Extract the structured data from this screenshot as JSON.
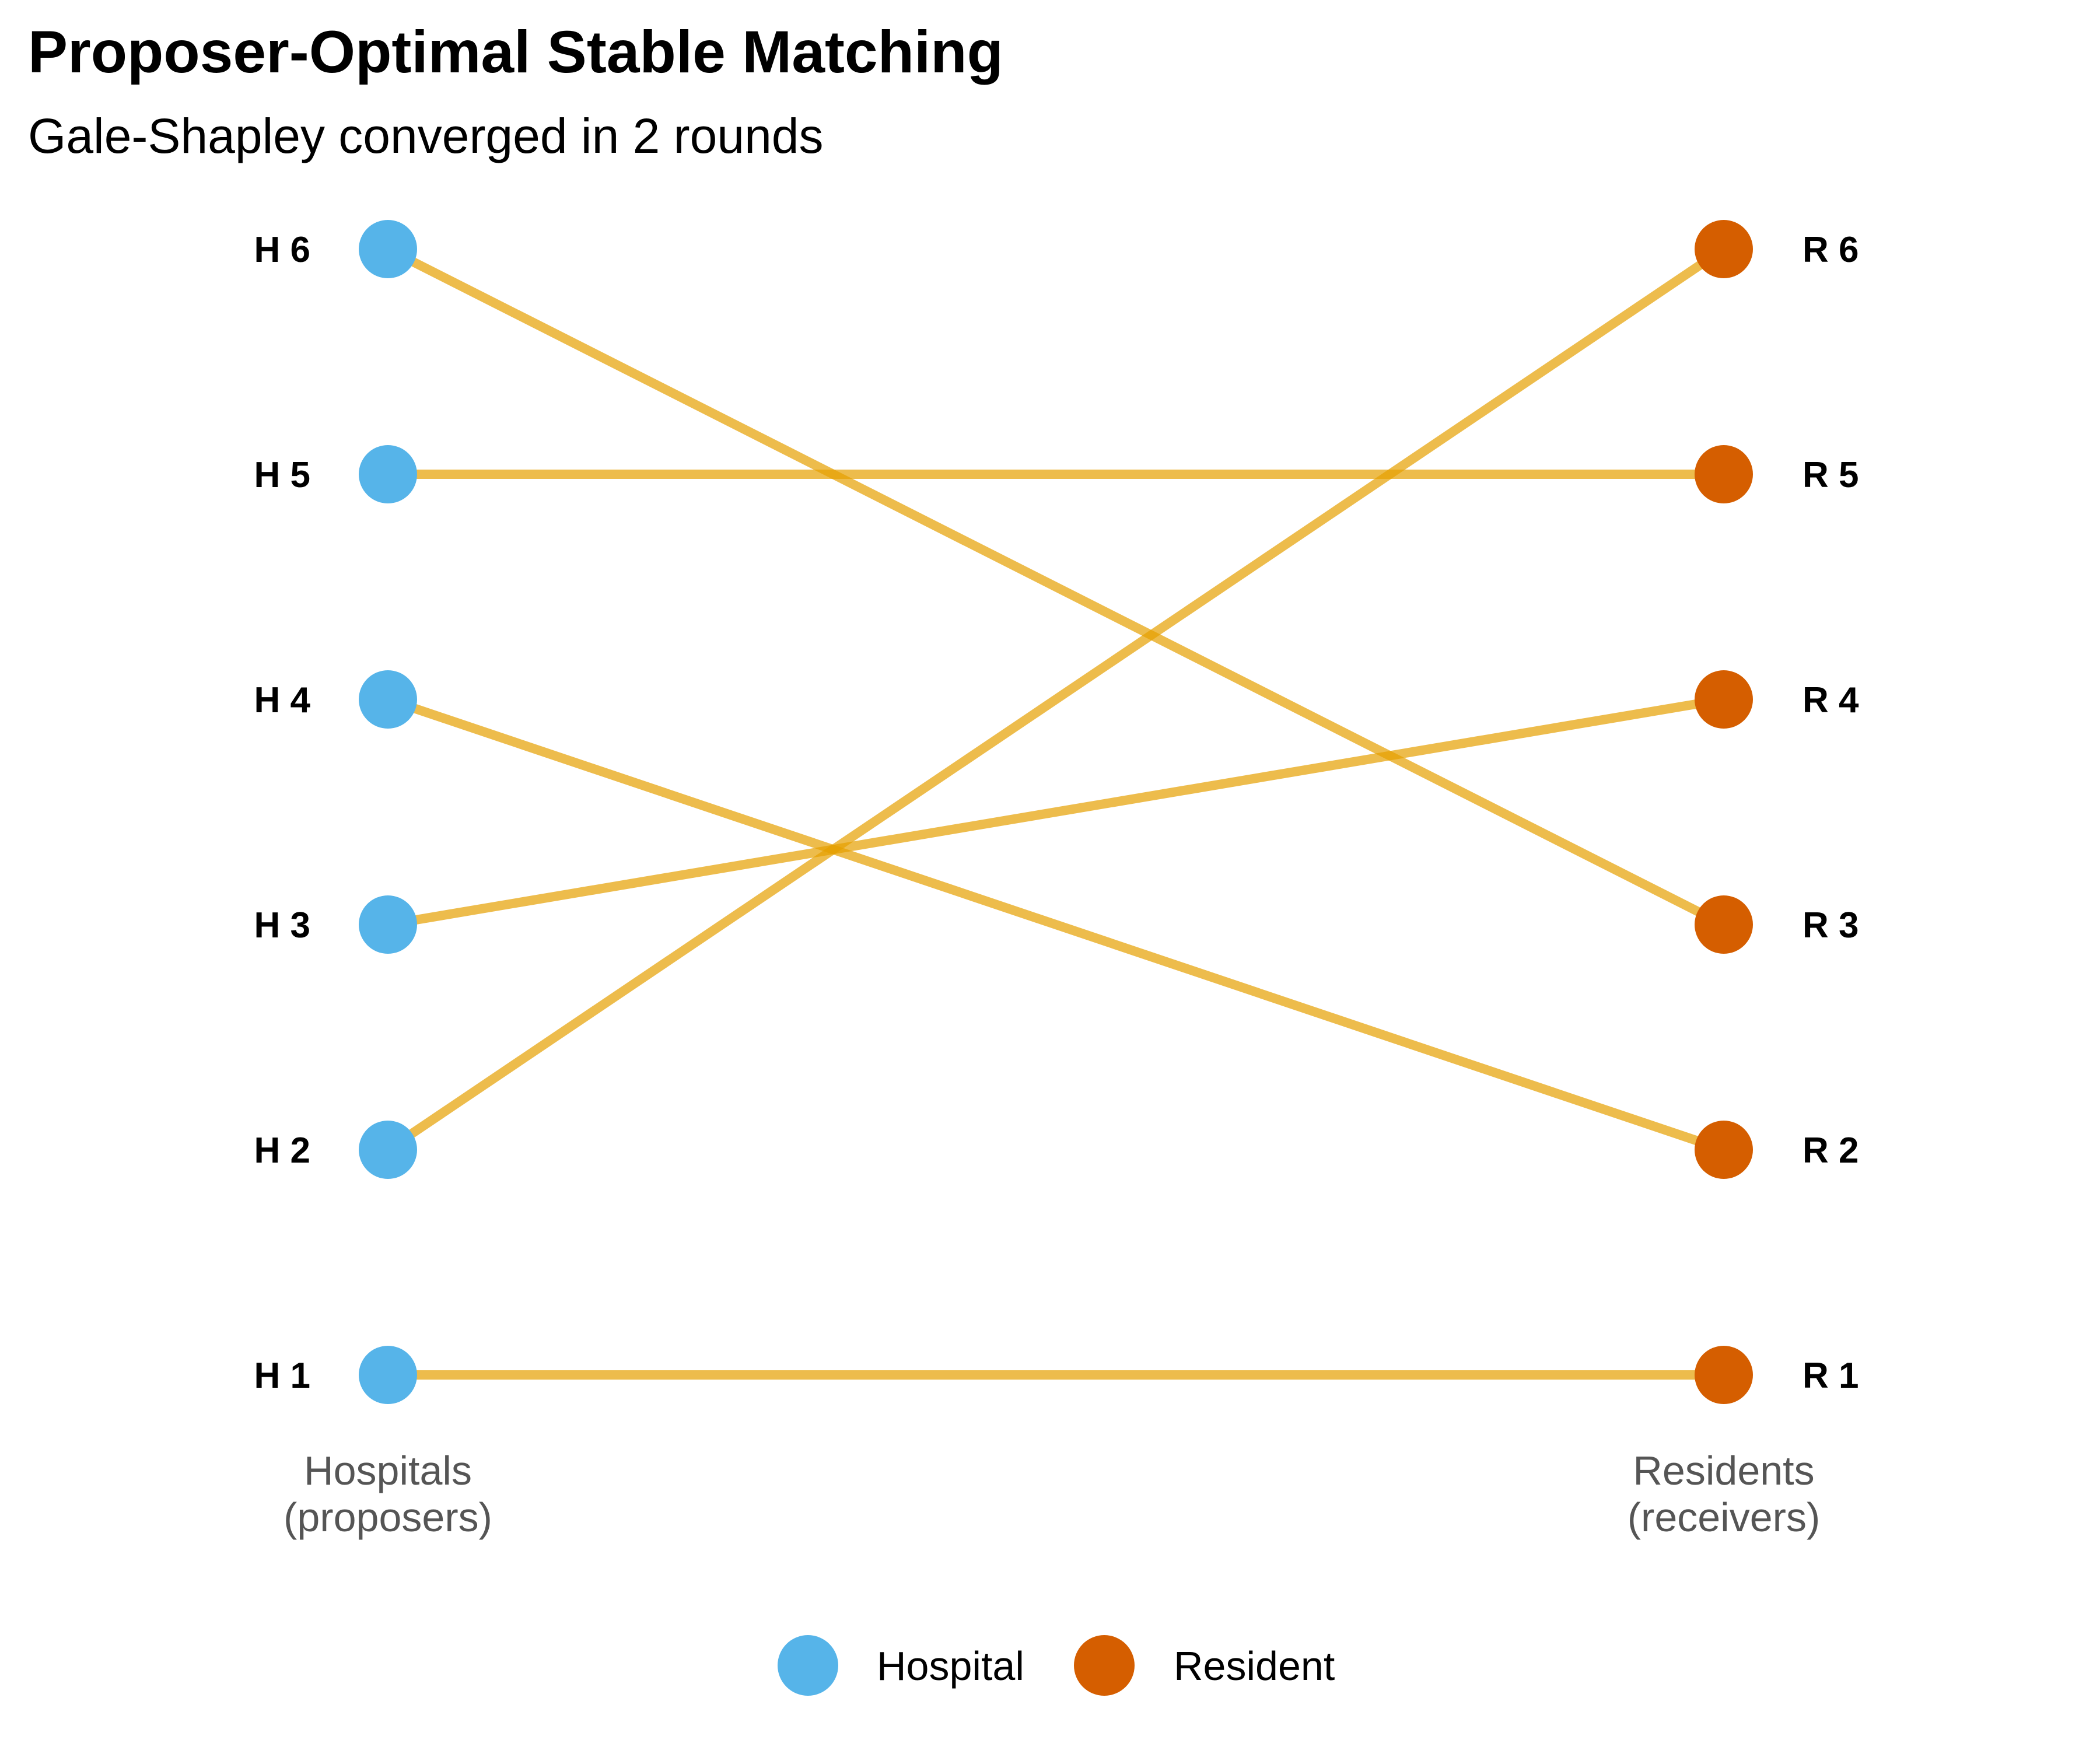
{
  "title": "Proposer-Optimal Stable Matching",
  "subtitle": "Gale-Shapley converged in 2 rounds",
  "proposers": {
    "label_line1": "Hospitals",
    "label_line2": "(proposers)",
    "color": "#56B4E9",
    "nodes": [
      {
        "id": 1,
        "label": "H 1"
      },
      {
        "id": 2,
        "label": "H 2"
      },
      {
        "id": 3,
        "label": "H 3"
      },
      {
        "id": 4,
        "label": "H 4"
      },
      {
        "id": 5,
        "label": "H 5"
      },
      {
        "id": 6,
        "label": "H 6"
      }
    ]
  },
  "receivers": {
    "label_line1": "Residents",
    "label_line2": "(receivers)",
    "color": "#D55E00",
    "nodes": [
      {
        "id": 1,
        "label": "R 1"
      },
      {
        "id": 2,
        "label": "R 2"
      },
      {
        "id": 3,
        "label": "R 3"
      },
      {
        "id": 4,
        "label": "R 4"
      },
      {
        "id": 5,
        "label": "R 5"
      },
      {
        "id": 6,
        "label": "R 6"
      }
    ]
  },
  "matching": [
    {
      "hospital": 1,
      "resident": 1
    },
    {
      "hospital": 2,
      "resident": 6
    },
    {
      "hospital": 3,
      "resident": 4
    },
    {
      "hospital": 4,
      "resident": 2
    },
    {
      "hospital": 5,
      "resident": 5
    },
    {
      "hospital": 6,
      "resident": 3
    }
  ],
  "edge_color": "#E69F00",
  "legend": {
    "items": [
      {
        "label": "Hospital",
        "color": "#56B4E9"
      },
      {
        "label": "Resident",
        "color": "#D55E00"
      }
    ]
  }
}
